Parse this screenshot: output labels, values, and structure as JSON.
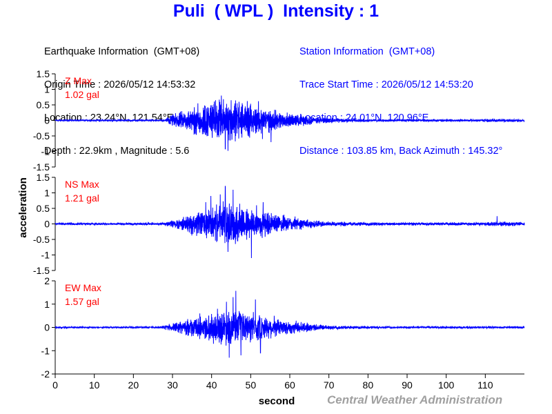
{
  "title": "Puli  ( WPL )  Intensity : 1",
  "earthquake_info": {
    "heading": "Earthquake Information  (GMT+08)",
    "origin_time": "Origin Time : 2026/05/12 14:53:32",
    "location": "Location : 23.24°N, 121.54°E",
    "depth_magnitude": "Depth : 22.9km , Magnitude : 5.6"
  },
  "station_info": {
    "heading": "Station Information  (GMT+08)",
    "trace_start": "Trace Start Time : 2026/05/12 14:53:20",
    "location": "Location : 24.01°N, 120.96°E",
    "distance": "Distance : 103.85 km, Back Azimuth : 145.32°"
  },
  "credit": "Central Weather Administration",
  "colors": {
    "title": "#0000ff",
    "trace": "#0000ff",
    "max_label": "#ff0000",
    "station_text": "#0000ff"
  },
  "chart_data": {
    "type": "line",
    "xlabel": "second",
    "ylabel": "acceleration",
    "xlim": [
      0,
      120
    ],
    "x_ticks": [
      0,
      10,
      20,
      30,
      40,
      50,
      60,
      70,
      80,
      90,
      100,
      110
    ],
    "grid": false,
    "panels": [
      {
        "component": "Z",
        "max_label": "Z Max",
        "max_value": "1.02 gal",
        "ylim": [
          -1.5,
          1.5
        ],
        "y_ticks": [
          -1.5,
          -1,
          -0.5,
          0,
          0.5,
          1,
          1.5
        ],
        "y_tick_labels": [
          "-1.5",
          "-1",
          "-0.5",
          "0",
          "0.5",
          "1",
          "1.5"
        ],
        "noise_level": 0.02,
        "envelope": [
          [
            0,
            0.02
          ],
          [
            28,
            0.03
          ],
          [
            30,
            0.25
          ],
          [
            33,
            0.35
          ],
          [
            36,
            0.55
          ],
          [
            40,
            0.7
          ],
          [
            43,
            0.8
          ],
          [
            46,
            0.8
          ],
          [
            50,
            0.6
          ],
          [
            54,
            0.45
          ],
          [
            58,
            0.3
          ],
          [
            62,
            0.22
          ],
          [
            66,
            0.14
          ],
          [
            70,
            0.09
          ],
          [
            75,
            0.06
          ],
          [
            85,
            0.04
          ],
          [
            95,
            0.04
          ],
          [
            105,
            0.04
          ],
          [
            110,
            0.05
          ],
          [
            115,
            0.06
          ],
          [
            120,
            0.05
          ]
        ],
        "peaks": [
          [
            36.5,
            0.55
          ],
          [
            41,
            0.65
          ],
          [
            42.5,
            0.8
          ],
          [
            43.5,
            -0.92
          ],
          [
            44.2,
            -0.98
          ],
          [
            45,
            0.65
          ],
          [
            47,
            0.6
          ],
          [
            48.6,
            0.45
          ],
          [
            52,
            0.62
          ],
          [
            53,
            -0.6
          ],
          [
            55.2,
            -0.7
          ]
        ]
      },
      {
        "component": "NS",
        "max_label": "NS Max",
        "max_value": "1.21 gal",
        "ylim": [
          -1.5,
          1.5
        ],
        "y_ticks": [
          -1.5,
          -1,
          -0.5,
          0,
          0.5,
          1,
          1.5
        ],
        "y_tick_labels": [
          "-1.5",
          "-1",
          "-0.5",
          "0",
          "0.5",
          "1",
          "1.5"
        ],
        "noise_level": 0.03,
        "envelope": [
          [
            0,
            0.03
          ],
          [
            28,
            0.04
          ],
          [
            30,
            0.15
          ],
          [
            33,
            0.25
          ],
          [
            36,
            0.45
          ],
          [
            40,
            0.6
          ],
          [
            43,
            0.75
          ],
          [
            46,
            0.75
          ],
          [
            50,
            0.6
          ],
          [
            54,
            0.45
          ],
          [
            58,
            0.32
          ],
          [
            62,
            0.22
          ],
          [
            66,
            0.14
          ],
          [
            70,
            0.09
          ],
          [
            75,
            0.07
          ],
          [
            85,
            0.05
          ],
          [
            95,
            0.05
          ],
          [
            105,
            0.05
          ],
          [
            110,
            0.07
          ],
          [
            115,
            0.08
          ],
          [
            120,
            0.06
          ]
        ],
        "peaks": [
          [
            38.5,
            0.7
          ],
          [
            39.8,
            0.9
          ],
          [
            42.2,
            0.95
          ],
          [
            43.5,
            1.21
          ],
          [
            44.2,
            -0.9
          ],
          [
            45.5,
            1.1
          ],
          [
            47.2,
            0.65
          ],
          [
            50.2,
            -1.1
          ],
          [
            51.5,
            0.6
          ],
          [
            53.2,
            0.7
          ],
          [
            113,
            0.25
          ]
        ]
      },
      {
        "component": "EW",
        "max_label": "EW Max",
        "max_value": "1.57 gal",
        "ylim": [
          -2,
          2
        ],
        "y_ticks": [
          -2,
          -1,
          0,
          1,
          2
        ],
        "y_tick_labels": [
          "-2",
          "-1",
          "0",
          "1",
          "2"
        ],
        "noise_level": 0.03,
        "envelope": [
          [
            0,
            0.03
          ],
          [
            27,
            0.04
          ],
          [
            29,
            0.15
          ],
          [
            32,
            0.3
          ],
          [
            35,
            0.45
          ],
          [
            38,
            0.6
          ],
          [
            42,
            0.8
          ],
          [
            45,
            0.85
          ],
          [
            48,
            0.75
          ],
          [
            51,
            0.7
          ],
          [
            54,
            0.55
          ],
          [
            58,
            0.4
          ],
          [
            62,
            0.28
          ],
          [
            66,
            0.18
          ],
          [
            70,
            0.1
          ],
          [
            75,
            0.07
          ],
          [
            85,
            0.05
          ],
          [
            100,
            0.05
          ],
          [
            120,
            0.05
          ]
        ],
        "peaks": [
          [
            37,
            0.6
          ],
          [
            41.5,
            0.8
          ],
          [
            43.8,
            1.1
          ],
          [
            44.5,
            -1.3
          ],
          [
            45.5,
            1.3
          ],
          [
            46.2,
            1.57
          ],
          [
            47.5,
            -1.2
          ],
          [
            51.2,
            1.2
          ],
          [
            52.5,
            -1.1
          ],
          [
            56,
            0.5
          ]
        ]
      }
    ]
  }
}
